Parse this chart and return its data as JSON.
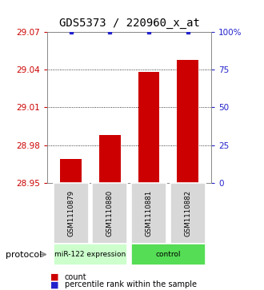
{
  "title": "GDS5373 / 220960_x_at",
  "samples": [
    "GSM1110879",
    "GSM1110880",
    "GSM1110881",
    "GSM1110882"
  ],
  "counts": [
    28.969,
    28.988,
    29.038,
    29.048
  ],
  "percentiles": [
    100,
    100,
    100,
    100
  ],
  "ylim": [
    28.95,
    29.07
  ],
  "yticks": [
    28.95,
    28.98,
    29.01,
    29.04,
    29.07
  ],
  "ytick_labels": [
    "28.95",
    "28.98",
    "29.01",
    "29.04",
    "29.07"
  ],
  "right_yticks": [
    0,
    25,
    50,
    75,
    100
  ],
  "right_ytick_labels": [
    "0",
    "25",
    "50",
    "75",
    "100%"
  ],
  "bar_color": "#cc0000",
  "dot_color": "#2222cc",
  "group1_label": "miR-122 expression",
  "group2_label": "control",
  "group1_color": "#ccffcc",
  "group2_color": "#55dd55",
  "protocol_label": "protocol",
  "legend_count_label": "count",
  "legend_pct_label": "percentile rank within the sample",
  "title_fontsize": 10,
  "sample_box_color": "#d8d8d8",
  "bar_width": 0.55
}
